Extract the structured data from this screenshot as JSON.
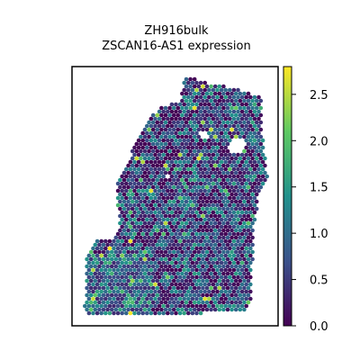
{
  "chart_data": {
    "type": "heatmap",
    "title_lines": [
      "ZH916bulk",
      "ZSCAN16-AS1 expression"
    ],
    "xlabel": "",
    "ylabel": "",
    "plot_kind": "spatial spot plot",
    "axes_ticks_visible": false,
    "grid": false,
    "colorbar": {
      "colormap": "viridis",
      "colors": [
        "#440154",
        "#3b528b",
        "#21918c",
        "#5ec962",
        "#fde725"
      ],
      "range": [
        0.0,
        2.8
      ],
      "ticks": [
        0.0,
        0.5,
        1.0,
        1.5,
        2.0,
        2.5
      ],
      "tick_labels": [
        "0.0",
        "0.5",
        "1.0",
        "1.5",
        "2.0",
        "2.5"
      ],
      "placement": "right"
    },
    "spot_value_summary": {
      "typical_range": [
        0.0,
        1.6
      ],
      "notable_high_values": [
        2.0,
        2.2,
        2.5,
        2.8
      ]
    }
  }
}
